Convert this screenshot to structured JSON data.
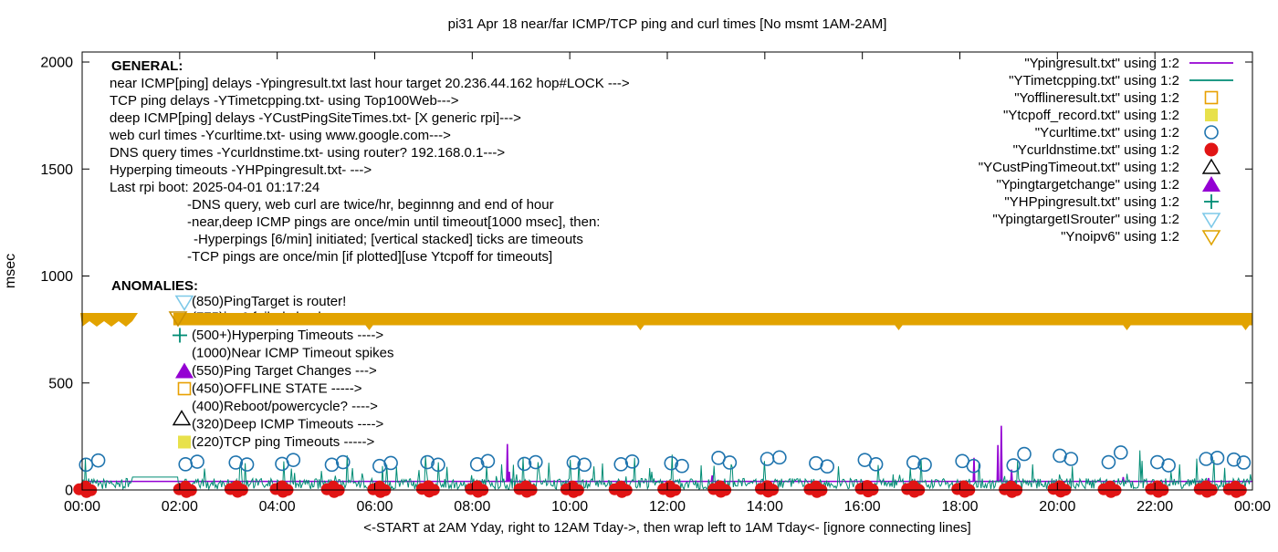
{
  "title": "pi31 Apr 18  near/far ICMP/TCP ping and curl times [No msmt 1AM-2AM]",
  "axis": {
    "ylabel": "msec",
    "xlabel": "<-START at 2AM Yday, right to 12AM Tday->, then wrap left to 1AM Tday<- [ignore connecting lines]",
    "x_ticks": [
      "00:00",
      "02:00",
      "04:00",
      "06:00",
      "08:00",
      "10:00",
      "12:00",
      "14:00",
      "16:00",
      "18:00",
      "20:00",
      "22:00",
      "00:00"
    ],
    "y_ticks": [
      0,
      500,
      1000,
      1500,
      2000
    ]
  },
  "general": {
    "header": "GENERAL:",
    "lines": [
      {
        "indent": 0,
        "text": "near ICMP[ping] delays -Ypingresult.txt last hour target 20.236.44.162 hop#LOCK --->"
      },
      {
        "indent": 0,
        "text": "TCP ping delays -YTimetcpping.txt- using Top100Web--->"
      },
      {
        "indent": 0,
        "text": "deep ICMP[ping] delays -YCustPingSiteTimes.txt- [X generic rpi]--->"
      },
      {
        "indent": 0,
        "text": "web curl times -Ycurltime.txt- using www.google.com--->"
      },
      {
        "indent": 0,
        "text": "DNS query times -Ycurldnstime.txt- using router? 192.168.0.1--->"
      },
      {
        "indent": 0,
        "text": "Hyperping timeouts -YHPpingresult.txt- --->"
      },
      {
        "indent": 0,
        "text": "Last rpi boot: 2025-04-01 01:17:24"
      },
      {
        "indent": 1,
        "text": "-DNS query, web curl are twice/hr, beginnng and end of hour"
      },
      {
        "indent": 1,
        "text": "-near,deep ICMP pings are once/min until timeout[1000 msec], then:"
      },
      {
        "indent": 2,
        "text": "-Hyperpings [6/min] initiated; [vertical stacked] ticks are timeouts"
      },
      {
        "indent": 1,
        "text": "-TCP pings are once/min [if plotted][use Ytcpoff for timeouts]"
      }
    ]
  },
  "anomalies": {
    "header": "ANOMALIES:",
    "items": [
      {
        "marker": "tri-down-open",
        "color": "#7EC9E8",
        "text": "(850)PingTarget is router!"
      },
      {
        "marker": "tri-down-open",
        "color": "#C98F00",
        "text": "(775)ipv6 failed check"
      },
      {
        "marker": "plus",
        "color": "#008C74",
        "text": "(500+)Hyperping Timeouts ---->"
      },
      {
        "marker": "none",
        "color": "",
        "text": "(1000)Near ICMP Timeout spikes"
      },
      {
        "marker": "tri-up-filled",
        "color": "#9400D3",
        "text": "(550)Ping Target Changes --->"
      },
      {
        "marker": "square-open",
        "color": "#E8A000",
        "text": "(450)OFFLINE STATE ----->"
      },
      {
        "marker": "none",
        "color": "",
        "text": "(400)Reboot/powercycle? ---->"
      },
      {
        "marker": "tri-up-open",
        "color": "#000000",
        "text": "(320)Deep ICMP Timeouts ---->"
      },
      {
        "marker": "square-filled",
        "color": "#E8E14B",
        "text": "(220)TCP ping Timeouts ----->"
      }
    ]
  },
  "legend": {
    "position": "top-right-inside",
    "items": [
      {
        "label": "\"Ypingresult.txt\" using 1:2",
        "marker": "line",
        "color": "#9400D3"
      },
      {
        "label": "\"YTimetcpping.txt\" using 1:2",
        "marker": "line",
        "color": "#008C74"
      },
      {
        "label": "\"Yofflineresult.txt\" using 1:2",
        "marker": "square-open",
        "color": "#E8A000"
      },
      {
        "label": "\"Ytcpoff_record.txt\" using 1:2",
        "marker": "square-filled",
        "color": "#E8E14B"
      },
      {
        "label": "\"Ycurltime.txt\" using 1:2",
        "marker": "circle-open",
        "color": "#1F74AE"
      },
      {
        "label": "\"Ycurldnstime.txt\" using 1:2",
        "marker": "circle-filled",
        "color": "#E11414"
      },
      {
        "label": "\"YCustPingTimeout.txt\" using 1:2",
        "marker": "tri-up-open",
        "color": "#000000"
      },
      {
        "label": "\"Ypingtargetchange\" using 1:2",
        "marker": "tri-up-filled",
        "color": "#9400D3"
      },
      {
        "label": "\"YHPpingresult.txt\" using 1:2",
        "marker": "plus",
        "color": "#008C74"
      },
      {
        "label": "\"YpingtargetISrouter\" using 1:2",
        "marker": "tri-down-open",
        "color": "#7EC9E8"
      },
      {
        "label": "\"Ynoipv6\" using 1:2",
        "marker": "tri-down-open",
        "color": "#DFA300"
      }
    ]
  },
  "chart_data": {
    "type": "line",
    "title": "pi31 Apr 18  near/far ICMP/TCP ping and curl times [No msmt 1AM-2AM]",
    "xlabel": "<-START at 2AM Yday, right to 12AM Tday->, then wrap left to 1AM Tday<- [ignore connecting lines]",
    "ylabel": "msec",
    "x_unit": "hours 0-24, ticks every 2h",
    "ylim": [
      0,
      2046
    ],
    "grid": false,
    "no_measurement_window_hours": [
      1,
      2
    ],
    "series": [
      {
        "name": "Ypingresult.txt (near ICMP ping)",
        "style": "line",
        "color": "#9400D3",
        "baseline_msec": 40,
        "spikes": [
          [
            8.72,
            215
          ],
          [
            8.76,
            85
          ],
          [
            12.92,
            68
          ],
          [
            18.29,
            150
          ],
          [
            18.78,
            210
          ],
          [
            18.85,
            300
          ],
          [
            19.06,
            95
          ],
          [
            21.35,
            60
          ],
          [
            23.1,
            55
          ]
        ]
      },
      {
        "name": "YTimetcpping.txt (TCP ping)",
        "style": "noisy-line",
        "color": "#008C74",
        "baseline_msec": 30,
        "noise_range_msec": [
          4,
          110
        ],
        "flat_segment": {
          "from_h": 1.0,
          "to_h": 2.0,
          "msec": 60
        },
        "notable_spikes": [
          [
            0.06,
            145
          ],
          [
            2.5,
            100
          ],
          [
            3.35,
            125
          ],
          [
            4.3,
            100
          ],
          [
            7.05,
            160
          ],
          [
            8.6,
            120
          ],
          [
            9.35,
            130
          ],
          [
            10.5,
            110
          ],
          [
            12.1,
            165
          ],
          [
            13.3,
            120
          ],
          [
            14.0,
            135
          ],
          [
            15.5,
            110
          ],
          [
            17.2,
            145
          ],
          [
            18.4,
            130
          ],
          [
            19.5,
            120
          ],
          [
            20.3,
            110
          ],
          [
            21.7,
            185
          ],
          [
            22.5,
            120
          ],
          [
            23.2,
            140
          ]
        ]
      },
      {
        "name": "Ycurltime.txt (web curl, twice/hr)",
        "style": "open-circle",
        "color": "#1F74AE",
        "points": [
          [
            0.08,
            118
          ],
          [
            0.33,
            138
          ],
          [
            2.12,
            120
          ],
          [
            2.36,
            132
          ],
          [
            3.15,
            128
          ],
          [
            3.38,
            119
          ],
          [
            4.1,
            122
          ],
          [
            4.33,
            140
          ],
          [
            5.12,
            118
          ],
          [
            5.35,
            130
          ],
          [
            6.1,
            112
          ],
          [
            6.33,
            126
          ],
          [
            7.08,
            130
          ],
          [
            7.3,
            118
          ],
          [
            8.1,
            120
          ],
          [
            8.32,
            135
          ],
          [
            9.07,
            122
          ],
          [
            9.3,
            130
          ],
          [
            10.08,
            128
          ],
          [
            10.3,
            118
          ],
          [
            11.05,
            120
          ],
          [
            11.28,
            133
          ],
          [
            12.08,
            125
          ],
          [
            12.3,
            112
          ],
          [
            13.05,
            150
          ],
          [
            13.28,
            128
          ],
          [
            14.05,
            145
          ],
          [
            14.3,
            152
          ],
          [
            15.05,
            125
          ],
          [
            15.28,
            110
          ],
          [
            16.05,
            140
          ],
          [
            16.28,
            120
          ],
          [
            17.05,
            128
          ],
          [
            17.28,
            118
          ],
          [
            18.05,
            135
          ],
          [
            18.28,
            112
          ],
          [
            19.1,
            115
          ],
          [
            19.32,
            168
          ],
          [
            20.05,
            160
          ],
          [
            20.28,
            145
          ],
          [
            21.05,
            130
          ],
          [
            21.3,
            175
          ],
          [
            22.05,
            130
          ],
          [
            22.28,
            115
          ],
          [
            23.05,
            145
          ],
          [
            23.28,
            150
          ],
          [
            23.62,
            142
          ],
          [
            23.82,
            128
          ]
        ]
      },
      {
        "name": "Ycurldnstime.txt (DNS query, twice/hr)",
        "style": "filled-circle-cluster",
        "color": "#E11414",
        "clusters": [
          [
            0.07,
            3
          ],
          [
            2.12,
            3
          ],
          [
            3.17,
            4
          ],
          [
            4.1,
            4
          ],
          [
            5.15,
            3
          ],
          [
            6.1,
            3
          ],
          [
            7.1,
            5
          ],
          [
            8.1,
            4
          ],
          [
            9.1,
            4
          ],
          [
            10.06,
            3
          ],
          [
            11.05,
            3
          ],
          [
            12.05,
            4
          ],
          [
            13.08,
            4
          ],
          [
            14.05,
            5
          ],
          [
            15.05,
            3
          ],
          [
            16.1,
            6
          ],
          [
            17.05,
            4
          ],
          [
            18.08,
            4
          ],
          [
            19.05,
            3
          ],
          [
            20.05,
            5
          ],
          [
            21.08,
            3
          ],
          [
            22.05,
            4
          ],
          [
            23.05,
            4
          ],
          [
            23.65,
            3
          ]
        ]
      },
      {
        "name": "Ynoipv6 (ipv6-fail marker band)",
        "style": "down-triangle-band",
        "color": "#E2A300",
        "msec": 775,
        "segments_hours": [
          [
            -0.04,
            1.15
          ],
          [
            1.87,
            24.0
          ]
        ]
      }
    ]
  }
}
